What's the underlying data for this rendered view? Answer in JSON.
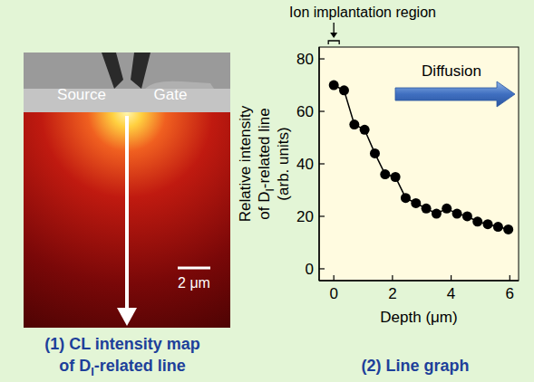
{
  "image_panel": {
    "source_label": "Source",
    "gate_label": "Gate",
    "scale_bar": "2 μm",
    "caption": [
      [
        {
          "text": "(1) CL intensity map"
        }
      ],
      [
        {
          "text": "of D"
        },
        {
          "sub": "I"
        },
        {
          "text": "-related line"
        }
      ]
    ]
  },
  "chart_data": {
    "type": "line",
    "title": "(2) Line graph",
    "xlabel": "Depth (μm)",
    "ylabel": [
      [
        {
          "text": "Relative intensity"
        }
      ],
      [
        {
          "text": "of D"
        },
        {
          "sub": "I"
        },
        {
          "text": "-related line"
        }
      ],
      [
        {
          "text": "(arb. units)"
        }
      ]
    ],
    "annotations": [
      "Ion implantation region",
      "Diffusion"
    ],
    "x": [
      0,
      0.35,
      0.7,
      1.05,
      1.4,
      1.75,
      2.1,
      2.45,
      2.8,
      3.15,
      3.5,
      3.85,
      4.2,
      4.55,
      4.9,
      5.25,
      5.6,
      5.95
    ],
    "values": [
      70,
      68,
      55,
      53,
      44,
      36,
      35,
      27,
      25,
      23,
      21,
      23,
      21,
      20,
      18,
      17,
      16,
      15
    ],
    "xlim": [
      -0.5,
      6.3
    ],
    "ylim": [
      -4.5,
      84.5
    ],
    "xticks": [
      0,
      2,
      4,
      6
    ],
    "yticks": [
      0,
      20,
      40,
      60,
      80
    ],
    "color": "#000000",
    "marker": "circle",
    "line_style": "solid"
  }
}
